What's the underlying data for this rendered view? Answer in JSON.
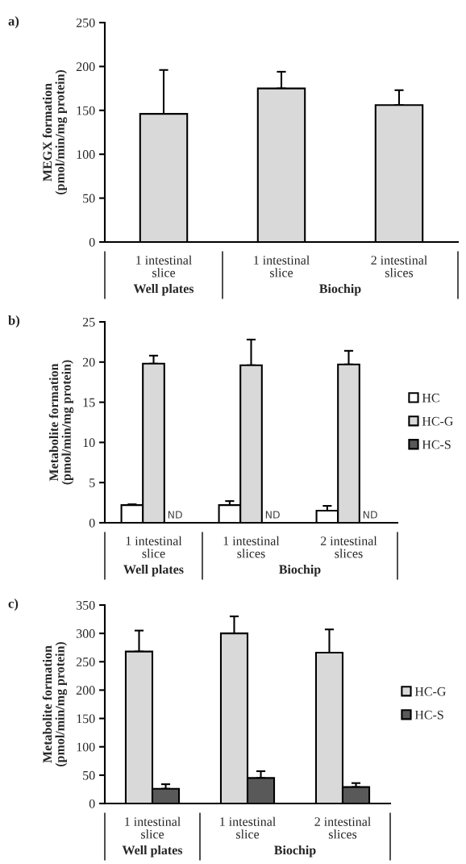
{
  "chart_data": [
    {
      "type": "bar",
      "title": "a)",
      "ylabel": "MEGX formation\n(pmol/min/mg protein)",
      "categories": [
        "1 intestinal\nslice",
        "1 intestinal\nslice",
        "2 intestinal\nslices"
      ],
      "values": [
        146,
        175,
        156
      ],
      "errors": [
        50,
        19,
        17
      ],
      "color": "#d9d9d9",
      "ylim": [
        0,
        250
      ],
      "yticks": [
        0,
        50,
        100,
        150,
        200,
        250
      ],
      "grid": false,
      "legend": false,
      "annotations": [
        "Well plates",
        "Biochip"
      ]
    },
    {
      "type": "bar",
      "title": "b)",
      "ylabel": "Metabolite formation\n(pmol/min/mg protein)",
      "categories": [
        "1 intestinal\nslice",
        "1 intestinal\nslices",
        "2 intestinal\nslices"
      ],
      "series": [
        {
          "name": "HC",
          "color": "#ffffff",
          "values": [
            2.2,
            2.2,
            1.5
          ],
          "errors": [
            0.1,
            0.5,
            0.6
          ]
        },
        {
          "name": "HC-G",
          "color": "#d9d9d9",
          "values": [
            19.8,
            19.6,
            19.7
          ],
          "errors": [
            1.0,
            3.2,
            1.7
          ]
        },
        {
          "name": "HC-S",
          "color": "#595959",
          "values": [
            null,
            null,
            null
          ]
        }
      ],
      "ylim": [
        0,
        25
      ],
      "yticks": [
        0,
        5,
        10,
        15,
        20,
        25
      ],
      "grid": false,
      "legend": "right",
      "annotations": [
        "Well plates",
        "Biochip",
        {
          "text": "ND",
          "x": "1 intestinal\nslice",
          "y": 0
        },
        {
          "text": "ND",
          "x": "1 intestinal\nslices",
          "y": 0
        },
        {
          "text": "ND",
          "x": "2 intestinal\nslices",
          "y": 0
        }
      ]
    },
    {
      "type": "bar",
      "title": "c)",
      "ylabel": "Metabolite formation\n(pmol/min/mg protein)",
      "categories": [
        "1 intestinal\nslice",
        "1 intestinal\nslice",
        "2 intestinal\nslices"
      ],
      "series": [
        {
          "name": "HC-G",
          "color": "#d9d9d9",
          "values": [
            268,
            300,
            266
          ],
          "errors": [
            37,
            30,
            41
          ]
        },
        {
          "name": "HC-S",
          "color": "#595959",
          "values": [
            26,
            45,
            29
          ],
          "errors": [
            8,
            12,
            7
          ]
        }
      ],
      "ylim": [
        0,
        350
      ],
      "yticks": [
        0,
        50,
        100,
        150,
        200,
        250,
        300,
        350
      ],
      "grid": false,
      "legend": "right",
      "annotations": [
        "Well plates",
        "Biochip"
      ]
    }
  ]
}
